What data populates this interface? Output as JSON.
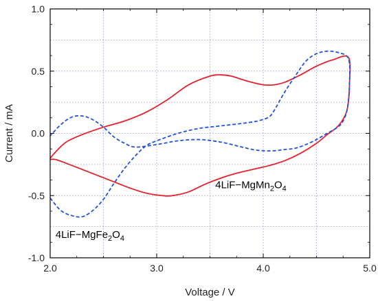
{
  "chart_data": {
    "type": "line",
    "title": "",
    "xlabel": "Voltage / V",
    "ylabel": "Current / mA",
    "xlim": [
      2.0,
      5.0
    ],
    "ylim": [
      -1.0,
      1.0
    ],
    "xticks": [
      2.0,
      3.0,
      4.0,
      5.0
    ],
    "xtick_labels": [
      "2.0",
      "3.0",
      "4.0",
      "5.0"
    ],
    "yticks": [
      -1.0,
      -0.5,
      0.0,
      0.5,
      1.0
    ],
    "ytick_labels": [
      "-1.0",
      "-0.5",
      "0.0",
      "0.5",
      "1.0"
    ],
    "grid": true,
    "annotations": [
      {
        "prefix": "4LiF−MgMn",
        "sub1": "2",
        "mid": "O",
        "sub2": "4",
        "x": 3.55,
        "y": -0.44,
        "color": "#000000"
      },
      {
        "prefix": "4LiF−MgFe",
        "sub1": "2",
        "mid": "O",
        "sub2": "4",
        "x": 2.05,
        "y": -0.84,
        "color": "#000000"
      }
    ],
    "series": [
      {
        "color": "#e8202a",
        "style": "solid",
        "x": [
          2.0,
          2.05,
          2.15,
          2.3,
          2.5,
          2.7,
          2.9,
          3.1,
          3.3,
          3.5,
          3.6,
          3.7,
          3.85,
          4.0,
          4.1,
          4.2,
          4.35,
          4.5,
          4.65,
          4.8,
          4.81,
          4.79,
          4.74,
          4.68,
          4.6,
          4.5,
          4.35,
          4.2,
          4.05,
          3.9,
          3.75,
          3.6,
          3.45,
          3.3,
          3.15,
          3.05,
          2.9,
          2.75,
          2.6,
          2.45,
          2.3,
          2.15,
          2.05,
          2.0
        ],
        "y": [
          -0.2,
          -0.15,
          -0.07,
          -0.01,
          0.05,
          0.1,
          0.17,
          0.27,
          0.39,
          0.46,
          0.47,
          0.46,
          0.42,
          0.39,
          0.39,
          0.41,
          0.47,
          0.54,
          0.59,
          0.61,
          0.4,
          0.2,
          0.1,
          0.04,
          -0.01,
          -0.08,
          -0.16,
          -0.22,
          -0.26,
          -0.29,
          -0.32,
          -0.36,
          -0.41,
          -0.47,
          -0.5,
          -0.5,
          -0.48,
          -0.44,
          -0.39,
          -0.34,
          -0.29,
          -0.24,
          -0.21,
          -0.21
        ]
      },
      {
        "color": "#2050e0",
        "style": "dashed",
        "x": [
          2.0,
          2.1,
          2.2,
          2.3,
          2.4,
          2.5,
          2.6,
          2.7,
          2.8,
          2.9,
          3.0,
          3.2,
          3.4,
          3.6,
          3.8,
          3.95,
          4.05,
          4.1,
          4.2,
          4.3,
          4.4,
          4.5,
          4.6,
          4.7,
          4.8,
          4.81,
          4.79,
          4.75,
          4.7,
          4.6,
          4.5,
          4.4,
          4.3,
          4.2,
          4.1,
          4.0,
          3.9,
          3.8,
          3.6,
          3.4,
          3.2,
          3.0,
          2.8,
          2.7,
          2.6,
          2.5,
          2.4,
          2.3,
          2.2,
          2.1,
          2.0
        ],
        "y": [
          -0.52,
          -0.62,
          -0.66,
          -0.67,
          -0.62,
          -0.53,
          -0.4,
          -0.28,
          -0.18,
          -0.1,
          -0.06,
          0.0,
          0.04,
          0.06,
          0.08,
          0.1,
          0.13,
          0.18,
          0.33,
          0.46,
          0.58,
          0.64,
          0.66,
          0.65,
          0.6,
          0.4,
          0.2,
          0.1,
          0.05,
          0.0,
          -0.05,
          -0.09,
          -0.12,
          -0.13,
          -0.14,
          -0.14,
          -0.13,
          -0.11,
          -0.07,
          -0.05,
          -0.06,
          -0.09,
          -0.11,
          -0.08,
          -0.03,
          0.05,
          0.11,
          0.14,
          0.13,
          0.07,
          -0.02
        ]
      }
    ]
  }
}
